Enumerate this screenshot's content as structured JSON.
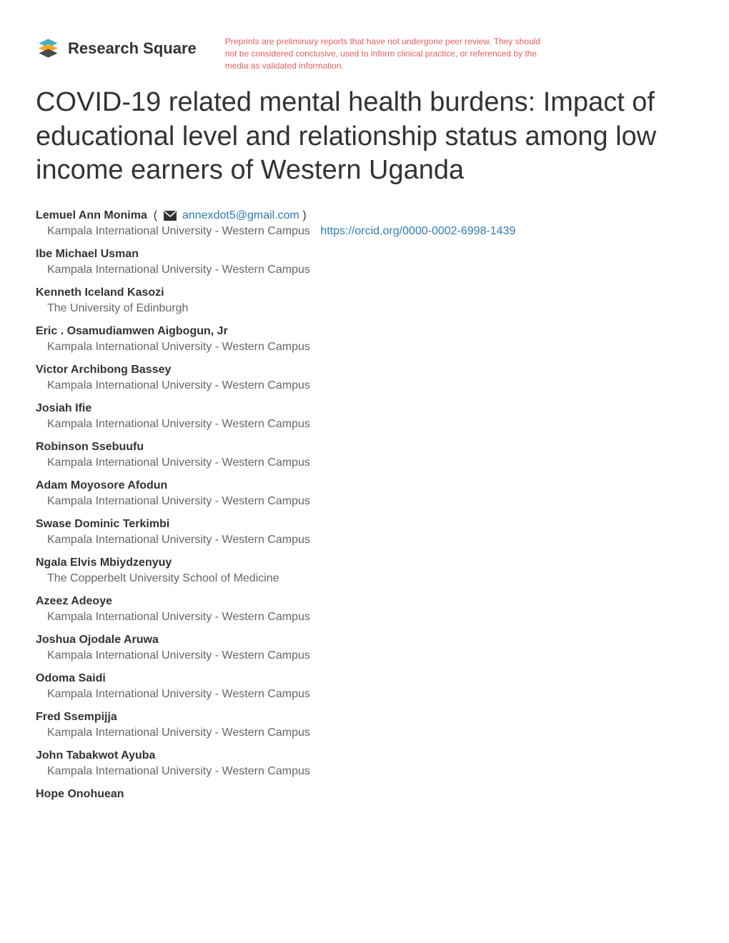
{
  "header": {
    "logo_text": "Research Square",
    "disclaimer": "Preprints are preliminary reports that have not undergone peer review. They should not be considered conclusive, used to inform clinical practice, or referenced by the media as validated information."
  },
  "title": "COVID-19 related mental health burdens: Impact of educational level and relationship status among low income earners of Western Uganda",
  "corresponding_author": {
    "name": "Lemuel Ann Monima",
    "email": "annexdot5@gmail.com",
    "affiliation": "Kampala International University - Western Campus",
    "orcid": "https://orcid.org/0000-0002-6998-1439"
  },
  "authors": [
    {
      "name": "Ibe Michael Usman",
      "affiliation": "Kampala International University - Western Campus"
    },
    {
      "name": "Kenneth Iceland Kasozi",
      "affiliation": "The University of Edinburgh"
    },
    {
      "name": "Eric . Osamudiamwen Aigbogun, Jr",
      "affiliation": "Kampala International University - Western Campus"
    },
    {
      "name": "Victor Archibong Bassey",
      "affiliation": "Kampala International University - Western Campus"
    },
    {
      "name": "Josiah Ifie",
      "affiliation": "Kampala International University - Western Campus"
    },
    {
      "name": "Robinson Ssebuufu",
      "affiliation": "Kampala International University - Western Campus"
    },
    {
      "name": "Adam Moyosore Afodun",
      "affiliation": "Kampala International University - Western Campus"
    },
    {
      "name": "Swase Dominic Terkimbi",
      "affiliation": "Kampala International University - Western Campus"
    },
    {
      "name": "Ngala Elvis Mbiydzenyuy",
      "affiliation": "The Copperbelt University School of Medicine"
    },
    {
      "name": "Azeez Adeoye",
      "affiliation": "Kampala International University - Western Campus"
    },
    {
      "name": "Joshua Ojodale Aruwa",
      "affiliation": "Kampala International University - Western Campus"
    },
    {
      "name": "Odoma Saidi",
      "affiliation": "Kampala International University - Western Campus"
    },
    {
      "name": "Fred Ssempijja",
      "affiliation": "Kampala International University - Western Campus"
    },
    {
      "name": "John Tabakwot Ayuba",
      "affiliation": "Kampala International University - Western Campus"
    },
    {
      "name": "Hope Onohuean",
      "affiliation": ""
    }
  ],
  "colors": {
    "text_primary": "#333333",
    "text_secondary": "#666666",
    "link": "#2e7cb8",
    "disclaimer": "#e85d5d",
    "background": "#ffffff"
  }
}
